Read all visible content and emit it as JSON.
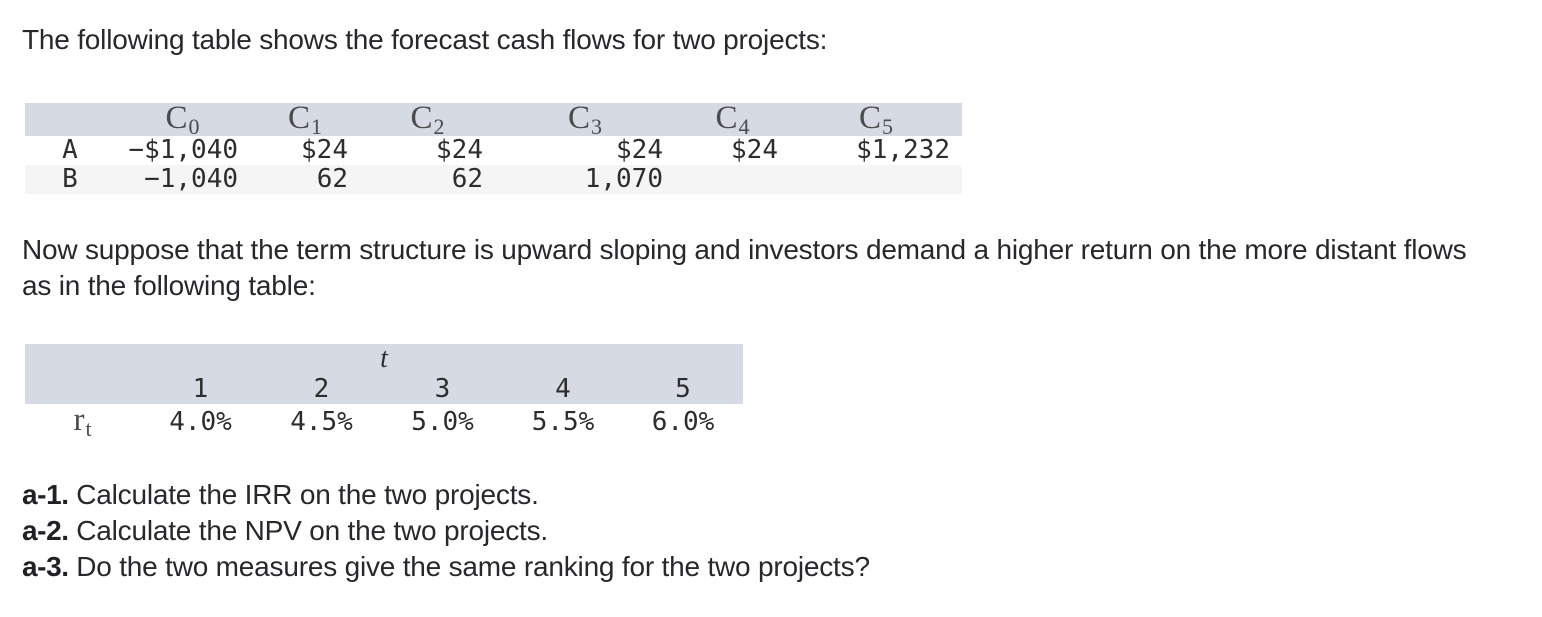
{
  "intro": "The following table shows the forecast cash flows for two projects:",
  "colors": {
    "table_header_bg": "#d6dae3",
    "row_stripe_bg": "#f5f5f6",
    "body_text": "#26282b",
    "mono_text": "#2d2d2d",
    "serif_header_text": "#4c4c4e"
  },
  "cashflow_table": {
    "columns": [
      {
        "base": "C",
        "sub": "0"
      },
      {
        "base": "C",
        "sub": "1"
      },
      {
        "base": "C",
        "sub": "2"
      },
      {
        "base": "C",
        "sub": "3"
      },
      {
        "base": "C",
        "sub": "4"
      },
      {
        "base": "C",
        "sub": "5"
      }
    ],
    "rows": [
      {
        "label": "A",
        "values": [
          "−$1,040",
          "$24",
          "$24",
          "$24",
          "$24",
          "$1,232"
        ]
      },
      {
        "label": "B",
        "values": [
          "−1,040",
          "62",
          "62",
          "1,070",
          "",
          ""
        ]
      }
    ]
  },
  "term_structure_text": "Now suppose that the term structure is upward sloping and investors demand a higher return on the more distant flows as in the following table:",
  "rates_table": {
    "header_var": "t",
    "periods": [
      "1",
      "2",
      "3",
      "4",
      "5"
    ],
    "row_label_base": "r",
    "row_label_sub": "t",
    "rates": [
      "4.0%",
      "4.5%",
      "5.0%",
      "5.5%",
      "6.0%"
    ]
  },
  "questions": [
    {
      "prefix": "a-1.",
      "text": " Calculate the IRR on the two projects."
    },
    {
      "prefix": "a-2.",
      "text": " Calculate the NPV on the two projects."
    },
    {
      "prefix": "a-3.",
      "text": " Do the two measures give the same ranking for the two projects?"
    }
  ]
}
